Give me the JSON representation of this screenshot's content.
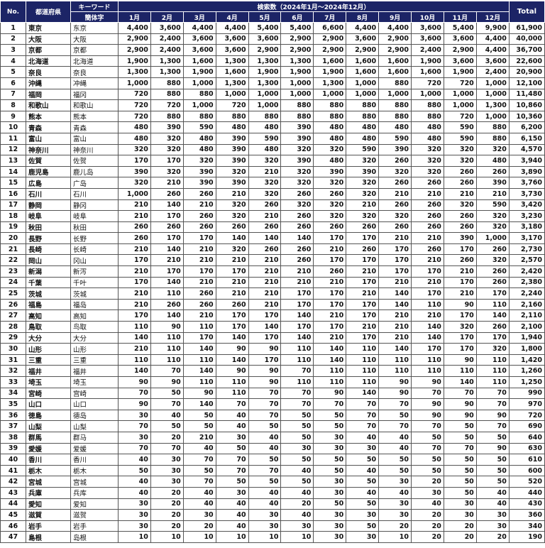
{
  "header": {
    "no": "No.",
    "prefecture": "都道府県",
    "keyword": "キーワード",
    "simplified": "簡体字",
    "search_volume": "検索数（2024年1月～2024年12月）",
    "months": [
      "1月",
      "2月",
      "3月",
      "4月",
      "5月",
      "6月",
      "7月",
      "8月",
      "9月",
      "10月",
      "11月",
      "12月"
    ],
    "total": "Total"
  },
  "colors": {
    "header_bg": "#1c2466",
    "header_text": "#ffffff"
  },
  "rows": [
    [
      "1",
      "東京",
      "东京",
      "4,400",
      "3,600",
      "4,400",
      "4,400",
      "5,400",
      "5,400",
      "6,600",
      "4,400",
      "4,400",
      "3,600",
      "5,400",
      "9,900",
      "61,900"
    ],
    [
      "2",
      "大阪",
      "大阪",
      "2,900",
      "2,400",
      "3,600",
      "3,600",
      "3,600",
      "2,900",
      "2,900",
      "3,600",
      "2,900",
      "3,600",
      "3,600",
      "4,400",
      "40,000"
    ],
    [
      "3",
      "京都",
      "京都",
      "2,900",
      "2,400",
      "3,600",
      "3,600",
      "2,900",
      "2,900",
      "2,900",
      "2,900",
      "2,900",
      "2,400",
      "2,900",
      "4,400",
      "36,700"
    ],
    [
      "4",
      "北海道",
      "北海道",
      "1,900",
      "1,300",
      "1,600",
      "1,300",
      "1,300",
      "1,300",
      "1,600",
      "1,600",
      "1,600",
      "1,900",
      "3,600",
      "3,600",
      "22,600"
    ],
    [
      "5",
      "奈良",
      "奈良",
      "1,300",
      "1,300",
      "1,900",
      "1,600",
      "1,900",
      "1,900",
      "1,900",
      "1,600",
      "1,600",
      "1,600",
      "1,900",
      "2,400",
      "20,900"
    ],
    [
      "6",
      "沖縄",
      "冲绳",
      "1,000",
      "880",
      "1,000",
      "1,300",
      "1,300",
      "1,000",
      "1,300",
      "1,000",
      "880",
      "720",
      "720",
      "1,000",
      "12,100"
    ],
    [
      "7",
      "福岡",
      "福冈",
      "720",
      "880",
      "880",
      "1,000",
      "1,000",
      "1,000",
      "1,000",
      "1,000",
      "1,000",
      "1,000",
      "1,000",
      "1,000",
      "11,480"
    ],
    [
      "8",
      "和歌山",
      "和歌山",
      "720",
      "720",
      "1,000",
      "720",
      "1,000",
      "880",
      "880",
      "880",
      "880",
      "880",
      "1,000",
      "1,300",
      "10,860"
    ],
    [
      "9",
      "熊本",
      "熊本",
      "720",
      "880",
      "880",
      "880",
      "880",
      "880",
      "880",
      "880",
      "880",
      "880",
      "720",
      "1,000",
      "10,360"
    ],
    [
      "10",
      "青森",
      "青森",
      "480",
      "390",
      "590",
      "480",
      "480",
      "390",
      "480",
      "480",
      "480",
      "480",
      "590",
      "880",
      "6,200"
    ],
    [
      "11",
      "富山",
      "富山",
      "480",
      "320",
      "480",
      "390",
      "590",
      "390",
      "480",
      "480",
      "590",
      "480",
      "590",
      "880",
      "6,150"
    ],
    [
      "12",
      "神奈川",
      "神奈川",
      "320",
      "320",
      "480",
      "390",
      "480",
      "320",
      "320",
      "590",
      "390",
      "320",
      "320",
      "320",
      "4,570"
    ],
    [
      "13",
      "佐賀",
      "佐贺",
      "170",
      "170",
      "320",
      "390",
      "320",
      "390",
      "480",
      "320",
      "260",
      "320",
      "320",
      "480",
      "3,940"
    ],
    [
      "14",
      "鹿児島",
      "鹿儿岛",
      "390",
      "320",
      "390",
      "320",
      "210",
      "320",
      "390",
      "390",
      "320",
      "320",
      "260",
      "260",
      "3,890"
    ],
    [
      "15",
      "広島",
      "广岛",
      "320",
      "210",
      "390",
      "390",
      "320",
      "320",
      "320",
      "320",
      "260",
      "260",
      "260",
      "390",
      "3,760"
    ],
    [
      "16",
      "石川",
      "石川",
      "1,000",
      "260",
      "260",
      "210",
      "320",
      "260",
      "260",
      "320",
      "210",
      "210",
      "210",
      "210",
      "3,730"
    ],
    [
      "17",
      "静岡",
      "静冈",
      "210",
      "140",
      "210",
      "320",
      "260",
      "320",
      "320",
      "210",
      "260",
      "260",
      "320",
      "590",
      "3,420"
    ],
    [
      "18",
      "岐阜",
      "岐阜",
      "210",
      "170",
      "260",
      "320",
      "210",
      "260",
      "320",
      "320",
      "320",
      "260",
      "260",
      "320",
      "3,230"
    ],
    [
      "19",
      "秋田",
      "秋田",
      "260",
      "260",
      "260",
      "260",
      "260",
      "260",
      "260",
      "260",
      "260",
      "260",
      "260",
      "320",
      "3,180"
    ],
    [
      "20",
      "長野",
      "长野",
      "260",
      "170",
      "170",
      "140",
      "140",
      "140",
      "170",
      "170",
      "210",
      "210",
      "390",
      "1,000",
      "3,170"
    ],
    [
      "21",
      "長崎",
      "长崎",
      "210",
      "140",
      "210",
      "320",
      "260",
      "260",
      "210",
      "260",
      "170",
      "260",
      "170",
      "260",
      "2,730"
    ],
    [
      "22",
      "岡山",
      "冈山",
      "170",
      "210",
      "210",
      "210",
      "210",
      "260",
      "170",
      "170",
      "170",
      "210",
      "260",
      "320",
      "2,570"
    ],
    [
      "23",
      "新潟",
      "新泻",
      "210",
      "170",
      "170",
      "170",
      "210",
      "210",
      "260",
      "210",
      "170",
      "170",
      "210",
      "260",
      "2,420"
    ],
    [
      "24",
      "千葉",
      "千叶",
      "170",
      "140",
      "210",
      "210",
      "210",
      "210",
      "210",
      "170",
      "210",
      "210",
      "170",
      "260",
      "2,380"
    ],
    [
      "25",
      "茨城",
      "茨城",
      "210",
      "110",
      "260",
      "210",
      "210",
      "170",
      "170",
      "210",
      "140",
      "170",
      "210",
      "170",
      "2,240"
    ],
    [
      "26",
      "福島",
      "福岛",
      "210",
      "260",
      "260",
      "260",
      "210",
      "170",
      "170",
      "170",
      "140",
      "110",
      "90",
      "110",
      "2,160"
    ],
    [
      "27",
      "高知",
      "高知",
      "170",
      "140",
      "210",
      "170",
      "170",
      "140",
      "210",
      "170",
      "210",
      "210",
      "170",
      "140",
      "2,110"
    ],
    [
      "28",
      "鳥取",
      "鸟取",
      "110",
      "90",
      "110",
      "170",
      "140",
      "170",
      "170",
      "210",
      "210",
      "140",
      "320",
      "260",
      "2,100"
    ],
    [
      "29",
      "大分",
      "大分",
      "140",
      "110",
      "170",
      "140",
      "170",
      "140",
      "210",
      "170",
      "210",
      "140",
      "170",
      "170",
      "1,940"
    ],
    [
      "30",
      "山形",
      "山形",
      "210",
      "110",
      "140",
      "90",
      "90",
      "110",
      "140",
      "110",
      "140",
      "170",
      "170",
      "320",
      "1,800"
    ],
    [
      "31",
      "三重",
      "三重",
      "110",
      "110",
      "110",
      "140",
      "170",
      "110",
      "140",
      "110",
      "110",
      "110",
      "90",
      "110",
      "1,420"
    ],
    [
      "32",
      "福井",
      "福井",
      "140",
      "70",
      "140",
      "90",
      "90",
      "70",
      "110",
      "110",
      "110",
      "110",
      "110",
      "110",
      "1,260"
    ],
    [
      "33",
      "埼玉",
      "埼玉",
      "90",
      "90",
      "110",
      "110",
      "90",
      "110",
      "110",
      "110",
      "90",
      "90",
      "140",
      "110",
      "1,250"
    ],
    [
      "34",
      "宮崎",
      "宫崎",
      "70",
      "50",
      "90",
      "110",
      "70",
      "70",
      "90",
      "140",
      "90",
      "70",
      "70",
      "70",
      "990"
    ],
    [
      "35",
      "山口",
      "山口",
      "90",
      "70",
      "140",
      "70",
      "70",
      "70",
      "70",
      "70",
      "70",
      "90",
      "90",
      "70",
      "970"
    ],
    [
      "36",
      "徳島",
      "德岛",
      "30",
      "40",
      "50",
      "40",
      "70",
      "50",
      "50",
      "70",
      "50",
      "90",
      "90",
      "90",
      "720"
    ],
    [
      "37",
      "山梨",
      "山梨",
      "70",
      "50",
      "50",
      "40",
      "50",
      "50",
      "50",
      "70",
      "70",
      "70",
      "50",
      "70",
      "690"
    ],
    [
      "38",
      "群馬",
      "群马",
      "30",
      "20",
      "210",
      "30",
      "40",
      "50",
      "30",
      "40",
      "40",
      "50",
      "50",
      "50",
      "640"
    ],
    [
      "39",
      "愛媛",
      "爱媛",
      "70",
      "70",
      "40",
      "50",
      "40",
      "30",
      "30",
      "30",
      "40",
      "70",
      "70",
      "90",
      "630"
    ],
    [
      "40",
      "香川",
      "香川",
      "40",
      "30",
      "70",
      "70",
      "50",
      "50",
      "50",
      "50",
      "50",
      "50",
      "50",
      "50",
      "610"
    ],
    [
      "41",
      "栃木",
      "栃木",
      "50",
      "30",
      "50",
      "70",
      "70",
      "40",
      "50",
      "40",
      "50",
      "50",
      "50",
      "50",
      "600"
    ],
    [
      "42",
      "宮城",
      "宫城",
      "40",
      "30",
      "70",
      "50",
      "50",
      "50",
      "30",
      "50",
      "30",
      "20",
      "50",
      "50",
      "520"
    ],
    [
      "43",
      "兵庫",
      "兵库",
      "40",
      "20",
      "40",
      "30",
      "40",
      "40",
      "30",
      "40",
      "40",
      "30",
      "50",
      "40",
      "440"
    ],
    [
      "44",
      "愛知",
      "爱知",
      "30",
      "20",
      "40",
      "40",
      "40",
      "20",
      "50",
      "50",
      "30",
      "40",
      "30",
      "40",
      "430"
    ],
    [
      "45",
      "滋賀",
      "滋贺",
      "30",
      "20",
      "30",
      "40",
      "30",
      "40",
      "30",
      "30",
      "30",
      "20",
      "30",
      "30",
      "360"
    ],
    [
      "46",
      "岩手",
      "岩手",
      "30",
      "20",
      "20",
      "40",
      "30",
      "30",
      "30",
      "50",
      "20",
      "20",
      "20",
      "30",
      "340"
    ],
    [
      "47",
      "島根",
      "岛根",
      "10",
      "10",
      "10",
      "10",
      "10",
      "10",
      "30",
      "30",
      "10",
      "20",
      "20",
      "20",
      "190"
    ]
  ]
}
